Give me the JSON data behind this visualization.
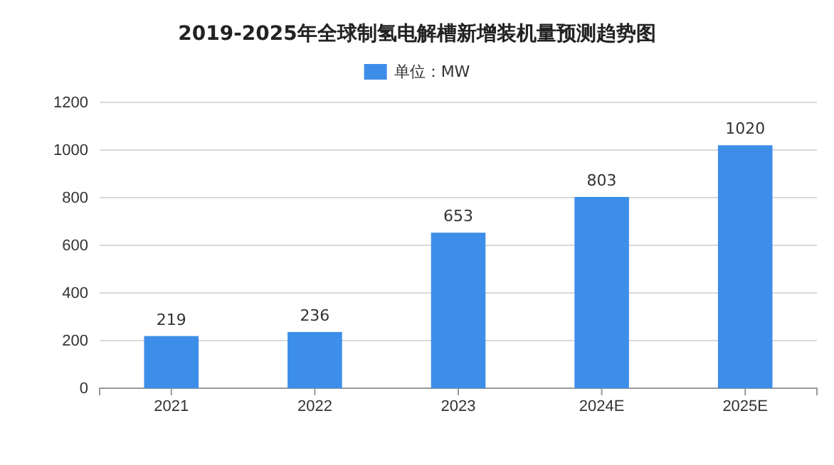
{
  "chart_data": {
    "type": "bar",
    "title": "2019-2025年全球制氢电解槽新增装机量预测趋势图",
    "categories": [
      "2021",
      "2022",
      "2023",
      "2024E",
      "2025E"
    ],
    "series": [
      {
        "name": "单位：MW",
        "color": "#3d8ee8",
        "values": [
          219,
          236,
          653,
          803,
          1020
        ]
      }
    ],
    "ylim": [
      0,
      1200
    ],
    "yticks": [
      0,
      200,
      400,
      600,
      800,
      1000,
      1200
    ],
    "grid": "y",
    "legend": "top",
    "data_labels": true
  }
}
